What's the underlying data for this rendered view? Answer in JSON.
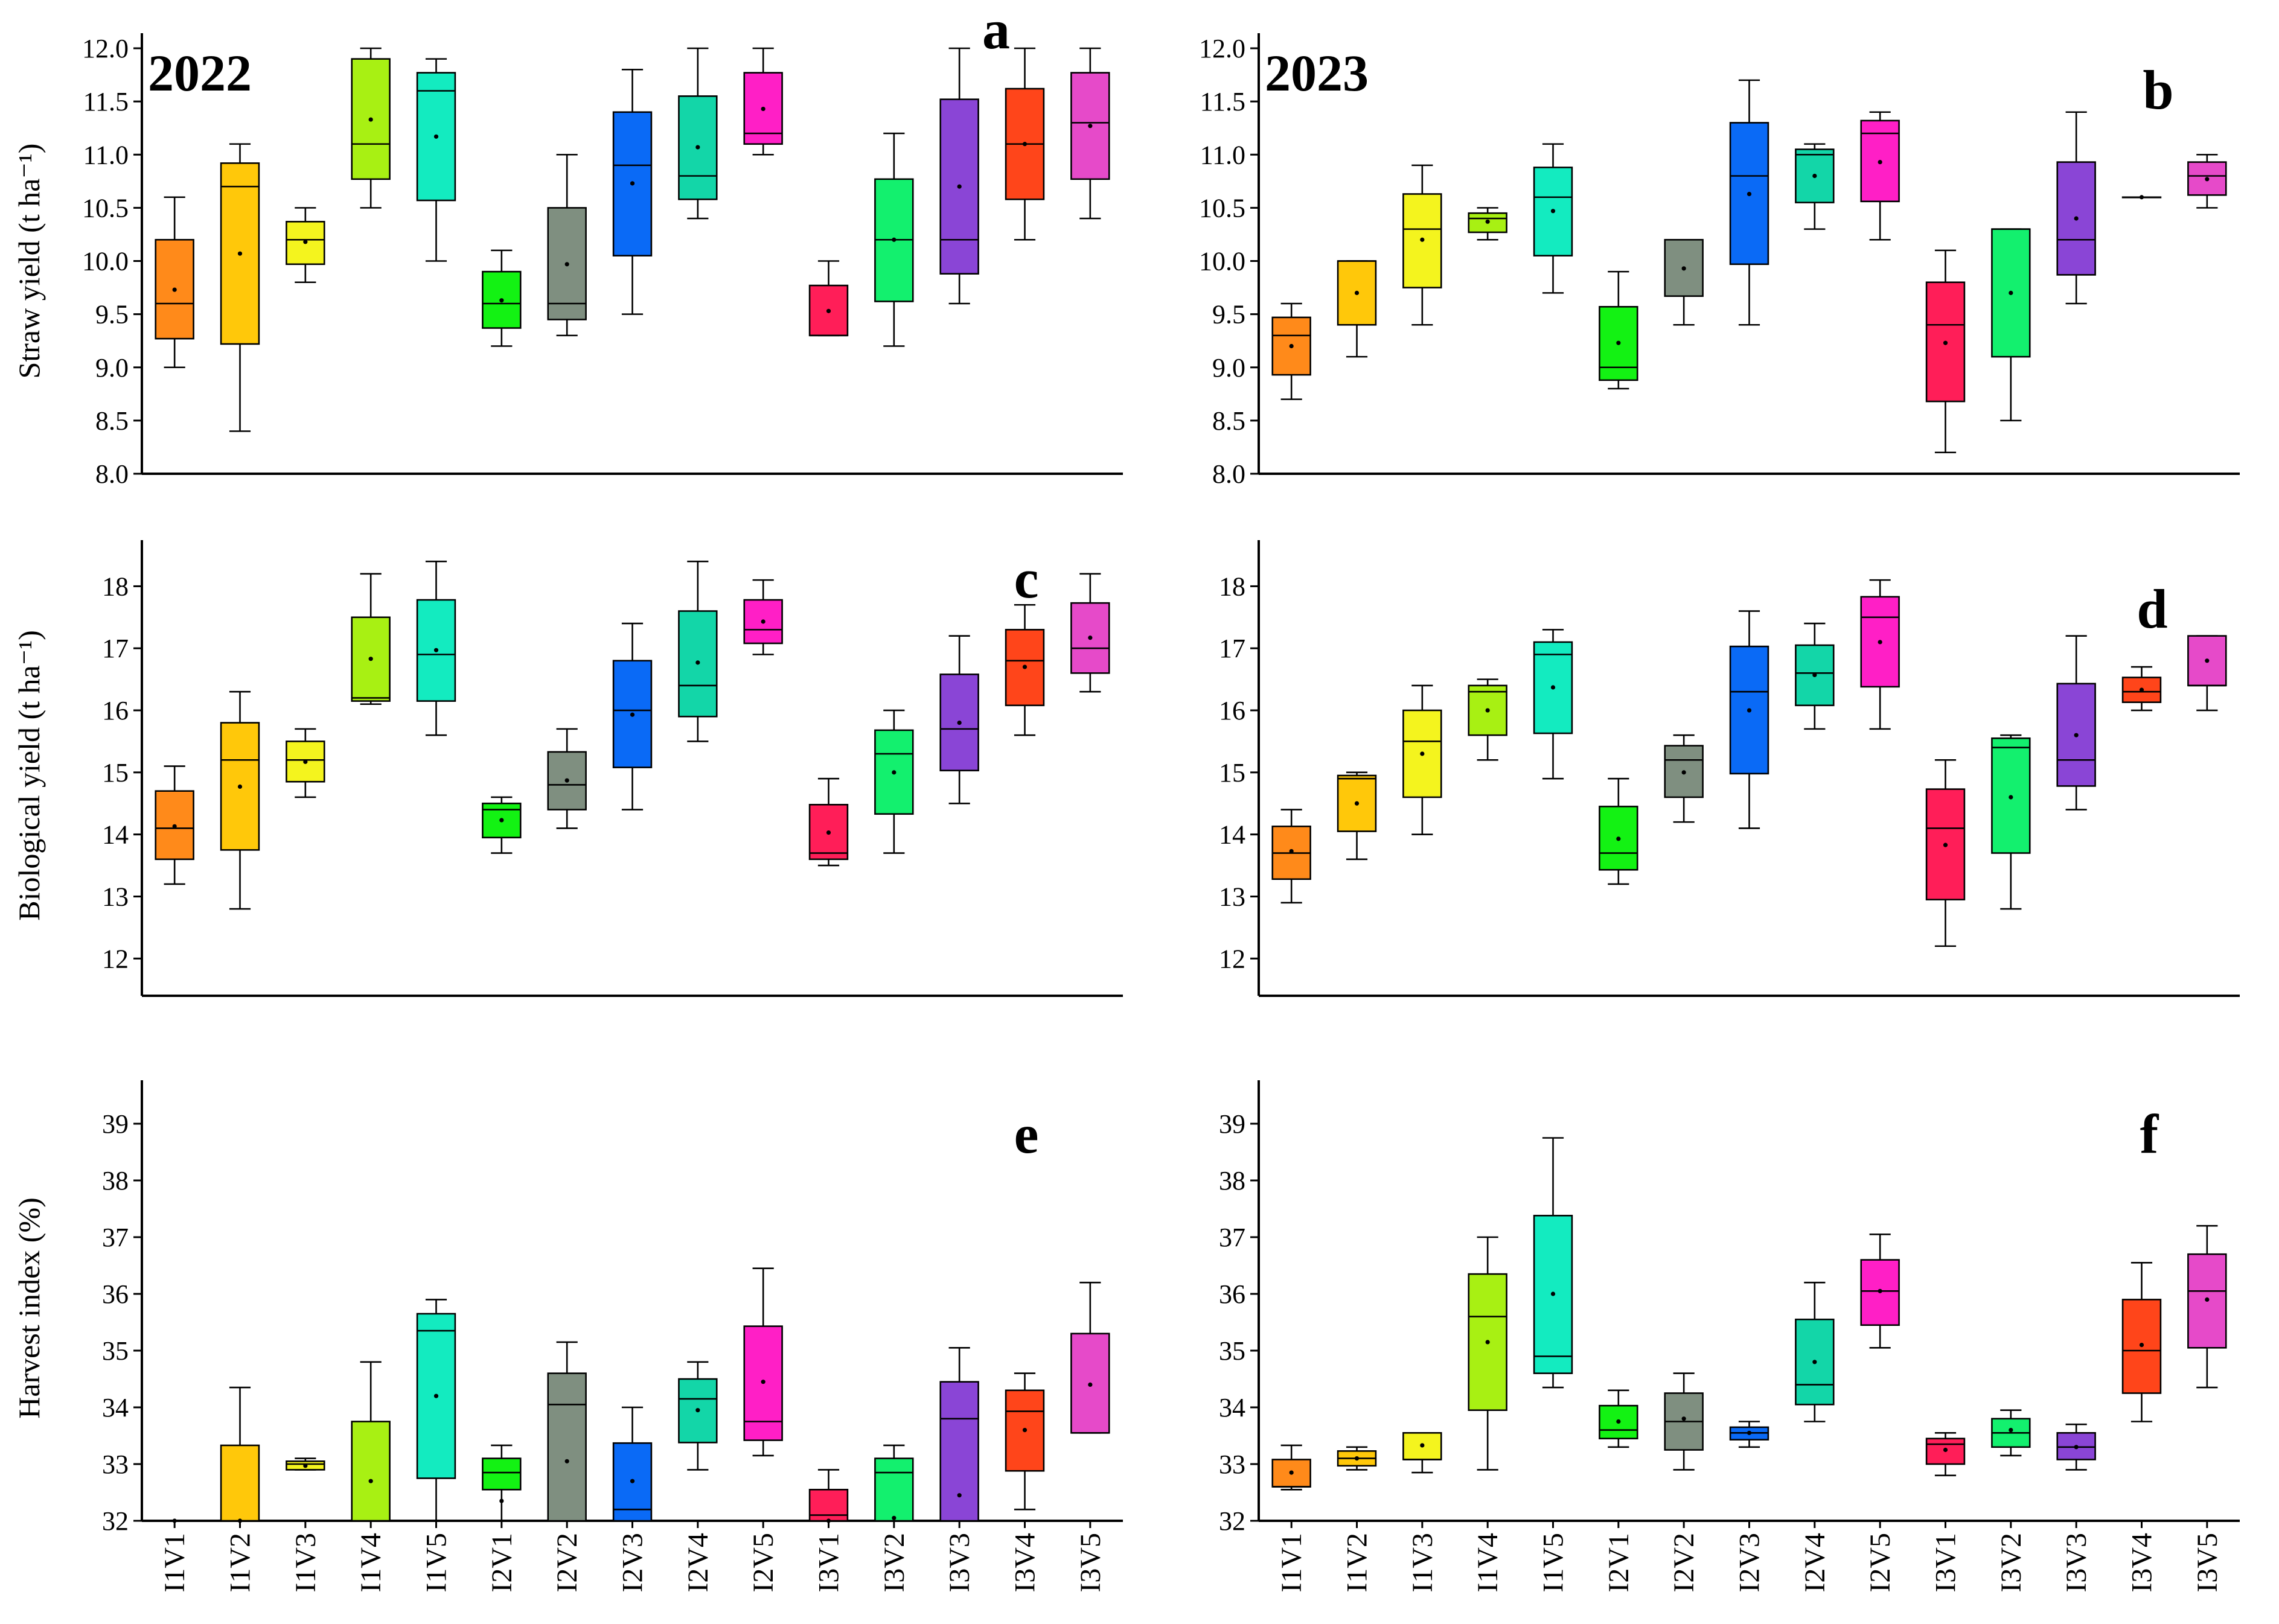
{
  "figure": {
    "categories": [
      "I1V1",
      "I1V2",
      "I1V3",
      "I1V4",
      "I1V5",
      "I2V1",
      "I2V2",
      "I2V3",
      "I2V4",
      "I2V5",
      "I3V1",
      "I3V2",
      "I3V3",
      "I3V4",
      "I3V5"
    ],
    "colors": [
      "#FF8A1A",
      "#FFC80A",
      "#F4F41E",
      "#A8F013",
      "#13EBC0",
      "#13F213",
      "#7F8F80",
      "#0A6AF6",
      "#13D6A8",
      "#FF1FC6",
      "#FF1E58",
      "#13F06E",
      "#8A45D6",
      "#FF451A",
      "#E64AC9"
    ]
  },
  "chart_data": [
    {
      "id": "a",
      "type": "box",
      "letter": "a",
      "year": "2022",
      "ylabel": "Straw yield (t ha⁻¹)",
      "ylim": [
        8.0,
        12.0
      ],
      "yticks": [
        "8.0",
        "8.5",
        "9.0",
        "9.5",
        "10.0",
        "10.5",
        "11.0",
        "11.5",
        "12.0"
      ],
      "boxes": [
        {
          "min": 9.0,
          "q1": 9.27,
          "median": 9.6,
          "q3": 10.2,
          "max": 10.6,
          "mean": 9.73
        },
        {
          "min": 8.4,
          "q1": 9.22,
          "median": 10.7,
          "q3": 10.92,
          "max": 11.1,
          "mean": 10.07
        },
        {
          "min": 9.8,
          "q1": 9.97,
          "median": 10.2,
          "q3": 10.37,
          "max": 10.5,
          "mean": 10.18
        },
        {
          "min": 10.5,
          "q1": 10.77,
          "median": 11.1,
          "q3": 11.9,
          "max": 12.0,
          "mean": 11.33
        },
        {
          "min": 10.0,
          "q1": 10.57,
          "median": 11.6,
          "q3": 11.77,
          "max": 11.9,
          "mean": 11.17
        },
        {
          "min": 9.2,
          "q1": 9.37,
          "median": 9.6,
          "q3": 9.9,
          "max": 10.1,
          "mean": 9.63
        },
        {
          "min": 9.3,
          "q1": 9.45,
          "median": 9.6,
          "q3": 10.5,
          "max": 11.0,
          "mean": 9.97
        },
        {
          "min": 9.5,
          "q1": 10.05,
          "median": 10.9,
          "q3": 11.4,
          "max": 11.8,
          "mean": 10.73
        },
        {
          "min": 10.4,
          "q1": 10.58,
          "median": 10.8,
          "q3": 11.55,
          "max": 12.0,
          "mean": 11.07
        },
        {
          "min": 11.0,
          "q1": 11.1,
          "median": 11.2,
          "q3": 11.77,
          "max": 12.0,
          "mean": 11.43
        },
        {
          "min": 9.3,
          "q1": 9.3,
          "median": 9.3,
          "q3": 9.77,
          "max": 10.0,
          "mean": 9.53
        },
        {
          "min": 9.2,
          "q1": 9.62,
          "median": 10.2,
          "q3": 10.77,
          "max": 11.2,
          "mean": 10.2
        },
        {
          "min": 9.6,
          "q1": 9.88,
          "median": 10.2,
          "q3": 11.52,
          "max": 12.0,
          "mean": 10.7
        },
        {
          "min": 10.2,
          "q1": 10.58,
          "median": 11.1,
          "q3": 11.62,
          "max": 12.0,
          "mean": 11.1
        },
        {
          "min": 10.4,
          "q1": 10.77,
          "median": 11.3,
          "q3": 11.77,
          "max": 12.0,
          "mean": 11.27
        }
      ]
    },
    {
      "id": "b",
      "type": "box",
      "letter": "b",
      "year": "2023",
      "ylabel": "",
      "ylim": [
        8.0,
        12.0
      ],
      "yticks": [
        "8.0",
        "8.5",
        "9.0",
        "9.5",
        "10.0",
        "10.5",
        "11.0",
        "11.5",
        "12.0"
      ],
      "boxes": [
        {
          "min": 8.7,
          "q1": 8.93,
          "median": 9.3,
          "q3": 9.47,
          "max": 9.6,
          "mean": 9.2
        },
        {
          "min": 9.1,
          "q1": 9.4,
          "median": 10.0,
          "q3": 10.0,
          "max": 10.0,
          "mean": 9.7
        },
        {
          "min": 9.4,
          "q1": 9.75,
          "median": 10.3,
          "q3": 10.63,
          "max": 10.9,
          "mean": 10.2
        },
        {
          "min": 10.2,
          "q1": 10.27,
          "median": 10.4,
          "q3": 10.45,
          "max": 10.5,
          "mean": 10.37
        },
        {
          "min": 9.7,
          "q1": 10.05,
          "median": 10.6,
          "q3": 10.88,
          "max": 11.1,
          "mean": 10.47
        },
        {
          "min": 8.8,
          "q1": 8.88,
          "median": 9.0,
          "q3": 9.57,
          "max": 9.9,
          "mean": 9.23
        },
        {
          "min": 9.4,
          "q1": 9.67,
          "median": 10.2,
          "q3": 10.2,
          "max": 10.2,
          "mean": 9.93
        },
        {
          "min": 9.4,
          "q1": 9.97,
          "median": 10.8,
          "q3": 11.3,
          "max": 11.7,
          "mean": 10.63
        },
        {
          "min": 10.3,
          "q1": 10.55,
          "median": 11.0,
          "q3": 11.05,
          "max": 11.1,
          "mean": 10.8
        },
        {
          "min": 10.2,
          "q1": 10.56,
          "median": 11.2,
          "q3": 11.32,
          "max": 11.4,
          "mean": 10.93
        },
        {
          "min": 8.2,
          "q1": 8.68,
          "median": 9.4,
          "q3": 9.8,
          "max": 10.1,
          "mean": 9.23
        },
        {
          "min": 8.5,
          "q1": 9.1,
          "median": 10.3,
          "q3": 10.3,
          "max": 10.3,
          "mean": 9.7
        },
        {
          "min": 9.6,
          "q1": 9.87,
          "median": 10.2,
          "q3": 10.93,
          "max": 11.4,
          "mean": 10.4
        },
        {
          "min": 10.6,
          "q1": 10.6,
          "median": 10.6,
          "q3": 10.6,
          "max": 10.6,
          "mean": 10.6
        },
        {
          "min": 10.5,
          "q1": 10.62,
          "median": 10.8,
          "q3": 10.93,
          "max": 11.0,
          "mean": 10.77
        }
      ]
    },
    {
      "id": "c",
      "type": "box",
      "letter": "c",
      "year": "",
      "ylabel": "Biological yield (t ha⁻¹)",
      "ylim": [
        11.4,
        18.5
      ],
      "yticks": [
        "12",
        "13",
        "14",
        "15",
        "16",
        "17",
        "18"
      ],
      "boxes": [
        {
          "min": 13.2,
          "q1": 13.6,
          "median": 14.1,
          "q3": 14.7,
          "max": 15.1,
          "mean": 14.13
        },
        {
          "min": 12.8,
          "q1": 13.75,
          "median": 15.2,
          "q3": 15.8,
          "max": 16.3,
          "mean": 14.77
        },
        {
          "min": 14.6,
          "q1": 14.85,
          "median": 15.2,
          "q3": 15.5,
          "max": 15.7,
          "mean": 15.17
        },
        {
          "min": 16.1,
          "q1": 16.15,
          "median": 16.2,
          "q3": 17.5,
          "max": 18.2,
          "mean": 16.83
        },
        {
          "min": 15.6,
          "q1": 16.15,
          "median": 16.9,
          "q3": 17.78,
          "max": 18.4,
          "mean": 16.97
        },
        {
          "min": 13.7,
          "q1": 13.95,
          "median": 14.4,
          "q3": 14.5,
          "max": 14.6,
          "mean": 14.23
        },
        {
          "min": 14.1,
          "q1": 14.4,
          "median": 14.8,
          "q3": 15.33,
          "max": 15.7,
          "mean": 14.87
        },
        {
          "min": 14.4,
          "q1": 15.08,
          "median": 16.0,
          "q3": 16.8,
          "max": 17.4,
          "mean": 15.93
        },
        {
          "min": 15.5,
          "q1": 15.9,
          "median": 16.4,
          "q3": 17.6,
          "max": 18.4,
          "mean": 16.77
        },
        {
          "min": 16.9,
          "q1": 17.08,
          "median": 17.3,
          "q3": 17.78,
          "max": 18.1,
          "mean": 17.43
        },
        {
          "min": 13.5,
          "q1": 13.6,
          "median": 13.7,
          "q3": 14.48,
          "max": 14.9,
          "mean": 14.03
        },
        {
          "min": 13.7,
          "q1": 14.33,
          "median": 15.3,
          "q3": 15.68,
          "max": 16.0,
          "mean": 15.0
        },
        {
          "min": 14.5,
          "q1": 15.03,
          "median": 15.7,
          "q3": 16.58,
          "max": 17.2,
          "mean": 15.8
        },
        {
          "min": 15.6,
          "q1": 16.08,
          "median": 16.8,
          "q3": 17.3,
          "max": 17.7,
          "mean": 16.7
        },
        {
          "min": 16.3,
          "q1": 16.6,
          "median": 17.0,
          "q3": 17.73,
          "max": 18.2,
          "mean": 17.17
        }
      ]
    },
    {
      "id": "d",
      "type": "box",
      "letter": "d",
      "year": "",
      "ylabel": "",
      "ylim": [
        11.4,
        18.5
      ],
      "yticks": [
        "12",
        "13",
        "14",
        "15",
        "16",
        "17",
        "18"
      ],
      "boxes": [
        {
          "min": 12.9,
          "q1": 13.28,
          "median": 13.7,
          "q3": 14.13,
          "max": 14.4,
          "mean": 13.73
        },
        {
          "min": 13.6,
          "q1": 14.05,
          "median": 14.9,
          "q3": 14.95,
          "max": 15.0,
          "mean": 14.5
        },
        {
          "min": 14.0,
          "q1": 14.6,
          "median": 15.5,
          "q3": 16.0,
          "max": 16.4,
          "mean": 15.3
        },
        {
          "min": 15.2,
          "q1": 15.6,
          "median": 16.3,
          "q3": 16.4,
          "max": 16.5,
          "mean": 16.0
        },
        {
          "min": 14.9,
          "q1": 15.63,
          "median": 16.9,
          "q3": 17.1,
          "max": 17.3,
          "mean": 16.37
        },
        {
          "min": 13.2,
          "q1": 13.43,
          "median": 13.7,
          "q3": 14.45,
          "max": 14.9,
          "mean": 13.93
        },
        {
          "min": 14.2,
          "q1": 14.6,
          "median": 15.2,
          "q3": 15.43,
          "max": 15.6,
          "mean": 15.0
        },
        {
          "min": 14.1,
          "q1": 14.98,
          "median": 16.3,
          "q3": 17.03,
          "max": 17.6,
          "mean": 16.0
        },
        {
          "min": 15.7,
          "q1": 16.08,
          "median": 16.6,
          "q3": 17.05,
          "max": 17.4,
          "mean": 16.57
        },
        {
          "min": 15.7,
          "q1": 16.38,
          "median": 17.5,
          "q3": 17.83,
          "max": 18.1,
          "mean": 17.1
        },
        {
          "min": 12.2,
          "q1": 12.95,
          "median": 14.1,
          "q3": 14.73,
          "max": 15.2,
          "mean": 13.83
        },
        {
          "min": 12.8,
          "q1": 13.7,
          "median": 15.4,
          "q3": 15.55,
          "max": 15.6,
          "mean": 14.6
        },
        {
          "min": 14.4,
          "q1": 14.78,
          "median": 15.2,
          "q3": 16.43,
          "max": 17.2,
          "mean": 15.6
        },
        {
          "min": 16.0,
          "q1": 16.13,
          "median": 16.3,
          "q3": 16.53,
          "max": 16.7,
          "mean": 16.33
        },
        {
          "min": 16.0,
          "q1": 16.4,
          "median": 16.4,
          "q3": 17.2,
          "max": 17.2,
          "mean": 16.8
        }
      ]
    },
    {
      "id": "e",
      "type": "box",
      "letter": "e",
      "year": "",
      "ylabel": "Harvest index (%)",
      "ylim": [
        32,
        39.5
      ],
      "yticks": [
        "32",
        "33",
        "34",
        "35",
        "36",
        "37",
        "38",
        "39"
      ],
      "boxes": [
        {
          "min": 32.0,
          "q1": 32.0,
          "median": 32.0,
          "q3": 32.0,
          "max": 32.0,
          "mean": 32.0
        },
        {
          "min": 32.0,
          "q1": 32.0,
          "median": 32.0,
          "q3": 33.33,
          "max": 34.35,
          "mean": 32.0
        },
        {
          "min": 32.9,
          "q1": 32.9,
          "median": 33.0,
          "q3": 33.05,
          "max": 33.1,
          "mean": 32.97
        },
        {
          "min": 32.0,
          "q1": 32.0,
          "median": 32.0,
          "q3": 33.75,
          "max": 34.8,
          "mean": 32.7
        },
        {
          "min": 32.0,
          "q1": 32.75,
          "median": 35.35,
          "q3": 35.65,
          "max": 35.9,
          "mean": 34.2
        },
        {
          "min": 32.0,
          "q1": 32.55,
          "median": 32.85,
          "q3": 33.1,
          "max": 33.33,
          "mean": 32.35
        },
        {
          "min": 32.0,
          "q1": 32.0,
          "median": 34.05,
          "q3": 34.6,
          "max": 35.15,
          "mean": 33.05
        },
        {
          "min": 32.0,
          "q1": 32.0,
          "median": 32.2,
          "q3": 33.37,
          "max": 34.0,
          "mean": 32.7
        },
        {
          "min": 32.9,
          "q1": 33.38,
          "median": 34.15,
          "q3": 34.5,
          "max": 34.8,
          "mean": 33.95
        },
        {
          "min": 33.15,
          "q1": 33.42,
          "median": 33.75,
          "q3": 35.43,
          "max": 36.45,
          "mean": 34.45
        },
        {
          "min": 32.0,
          "q1": 32.0,
          "median": 32.1,
          "q3": 32.55,
          "max": 32.9,
          "mean": 32.0
        },
        {
          "min": 32.0,
          "q1": 32.0,
          "median": 32.85,
          "q3": 33.1,
          "max": 33.33,
          "mean": 32.05
        },
        {
          "min": 32.0,
          "q1": 32.0,
          "median": 33.8,
          "q3": 34.45,
          "max": 35.05,
          "mean": 32.45
        },
        {
          "min": 32.2,
          "q1": 32.88,
          "median": 33.93,
          "q3": 34.3,
          "max": 34.6,
          "mean": 33.6
        },
        {
          "min": 33.55,
          "q1": 33.55,
          "median": 33.55,
          "q3": 35.3,
          "max": 36.2,
          "mean": 34.4
        }
      ]
    },
    {
      "id": "f",
      "type": "box",
      "letter": "f",
      "year": "",
      "ylabel": "",
      "ylim": [
        32,
        39.5
      ],
      "yticks": [
        "32",
        "33",
        "34",
        "35",
        "36",
        "37",
        "38",
        "39"
      ],
      "boxes": [
        {
          "min": 32.55,
          "q1": 32.6,
          "median": 32.6,
          "q3": 33.08,
          "max": 33.33,
          "mean": 32.85
        },
        {
          "min": 32.9,
          "q1": 32.97,
          "median": 33.1,
          "q3": 33.23,
          "max": 33.3,
          "mean": 33.1
        },
        {
          "min": 32.85,
          "q1": 33.08,
          "median": 33.08,
          "q3": 33.55,
          "max": 33.55,
          "mean": 33.33
        },
        {
          "min": 32.9,
          "q1": 33.95,
          "median": 35.6,
          "q3": 36.35,
          "max": 37.0,
          "mean": 35.15
        },
        {
          "min": 34.35,
          "q1": 34.6,
          "median": 34.9,
          "q3": 37.38,
          "max": 38.75,
          "mean": 36.0
        },
        {
          "min": 33.3,
          "q1": 33.45,
          "median": 33.6,
          "q3": 34.03,
          "max": 34.3,
          "mean": 33.75
        },
        {
          "min": 32.9,
          "q1": 33.25,
          "median": 33.75,
          "q3": 34.25,
          "max": 34.6,
          "mean": 33.8
        },
        {
          "min": 33.3,
          "q1": 33.43,
          "median": 33.55,
          "q3": 33.65,
          "max": 33.75,
          "mean": 33.55
        },
        {
          "min": 33.75,
          "q1": 34.05,
          "median": 34.4,
          "q3": 35.55,
          "max": 36.2,
          "mean": 34.8
        },
        {
          "min": 35.05,
          "q1": 35.45,
          "median": 36.05,
          "q3": 36.6,
          "max": 37.05,
          "mean": 36.05
        },
        {
          "min": 32.8,
          "q1": 33.0,
          "median": 33.35,
          "q3": 33.45,
          "max": 33.55,
          "mean": 33.25
        },
        {
          "min": 33.15,
          "q1": 33.3,
          "median": 33.55,
          "q3": 33.8,
          "max": 33.95,
          "mean": 33.6
        },
        {
          "min": 32.9,
          "q1": 33.08,
          "median": 33.3,
          "q3": 33.55,
          "max": 33.7,
          "mean": 33.3
        },
        {
          "min": 33.75,
          "q1": 34.25,
          "median": 35.0,
          "q3": 35.9,
          "max": 36.55,
          "mean": 35.1
        },
        {
          "min": 34.35,
          "q1": 35.05,
          "median": 36.05,
          "q3": 36.7,
          "max": 37.2,
          "mean": 35.9
        }
      ]
    }
  ]
}
